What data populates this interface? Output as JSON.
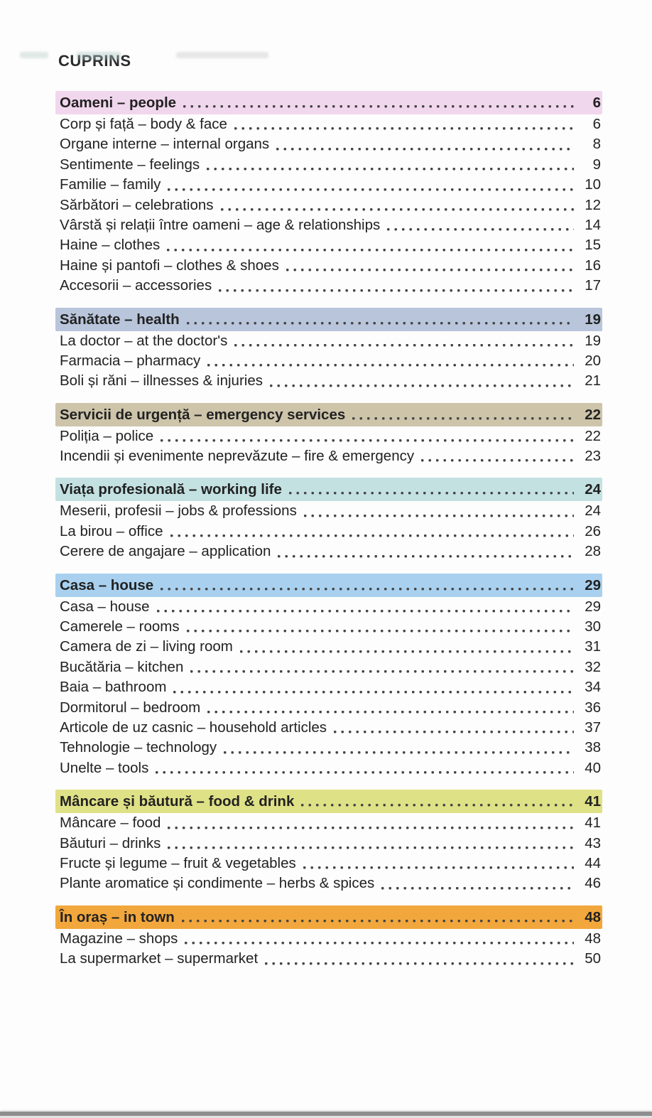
{
  "header": {
    "title": "CUPRINS"
  },
  "colors": {
    "text": "#222222",
    "dot_leader": "#454545",
    "scan_edge": "#8f8f8f"
  },
  "sections": [
    {
      "title": "Oameni – people",
      "page": "6",
      "highlight": "#f1d7ed",
      "items": [
        {
          "label": "Corp și față – body & face",
          "page": "6"
        },
        {
          "label": "Organe interne – internal organs",
          "page": "8"
        },
        {
          "label": "Sentimente – feelings",
          "page": "9"
        },
        {
          "label": "Familie – family",
          "page": "10"
        },
        {
          "label": "Sărbători – celebrations",
          "page": "12"
        },
        {
          "label": "Vârstă și relații între oameni – age & relationships",
          "page": "14"
        },
        {
          "label": "Haine – clothes",
          "page": "15"
        },
        {
          "label": "Haine și pantofi – clothes & shoes",
          "page": "16"
        },
        {
          "label": "Accesorii – accessories",
          "page": "17"
        }
      ]
    },
    {
      "title": "Sănătate – health",
      "page": "19",
      "highlight": "#b9c5db",
      "items": [
        {
          "label": "La doctor – at the doctor's",
          "page": "19"
        },
        {
          "label": "Farmacia – pharmacy",
          "page": "20"
        },
        {
          "label": "Boli și răni – illnesses & injuries",
          "page": "21"
        }
      ]
    },
    {
      "title": "Servicii de urgență – emergency services",
      "page": "22",
      "highlight": "#cdc4aa",
      "items": [
        {
          "label": "Poliția – police",
          "page": "22"
        },
        {
          "label": "Incendii și evenimente neprevăzute – fire & emergency",
          "page": "23"
        }
      ]
    },
    {
      "title": "Viața profesională – working life",
      "page": "24",
      "highlight": "#c4e1e2",
      "items": [
        {
          "label": "Meserii, profesii – jobs & professions",
          "page": "24"
        },
        {
          "label": "La birou – office",
          "page": "26"
        },
        {
          "label": "Cerere de angajare – application",
          "page": "28"
        }
      ]
    },
    {
      "title": "Casa – house",
      "page": "29",
      "highlight": "#a9d1ef",
      "items": [
        {
          "label": "Casa – house",
          "page": "29"
        },
        {
          "label": "Camerele – rooms",
          "page": "30"
        },
        {
          "label": "Camera de zi – living room",
          "page": "31"
        },
        {
          "label": "Bucătăria – kitchen",
          "page": "32"
        },
        {
          "label": "Baia – bathroom",
          "page": "34"
        },
        {
          "label": "Dormitorul – bedroom",
          "page": "36"
        },
        {
          "label": "Articole de uz casnic – household articles",
          "page": "37"
        },
        {
          "label": "Tehnologie – technology",
          "page": "38"
        },
        {
          "label": "Unelte – tools",
          "page": "40"
        }
      ]
    },
    {
      "title": "Mâncare și băutură – food & drink",
      "page": "41",
      "highlight": "#dfe187",
      "items": [
        {
          "label": "Mâncare – food",
          "page": "41"
        },
        {
          "label": "Băuturi – drinks",
          "page": "43"
        },
        {
          "label": "Fructe și legume – fruit & vegetables",
          "page": "44"
        },
        {
          "label": "Plante aromatice și condimente – herbs & spices",
          "page": "46"
        }
      ]
    },
    {
      "title": "În oraș – in town",
      "page": "48",
      "highlight": "#f2a73c",
      "items": [
        {
          "label": "Magazine – shops",
          "page": "48"
        },
        {
          "label": "La supermarket – supermarket",
          "page": "50"
        }
      ]
    }
  ]
}
